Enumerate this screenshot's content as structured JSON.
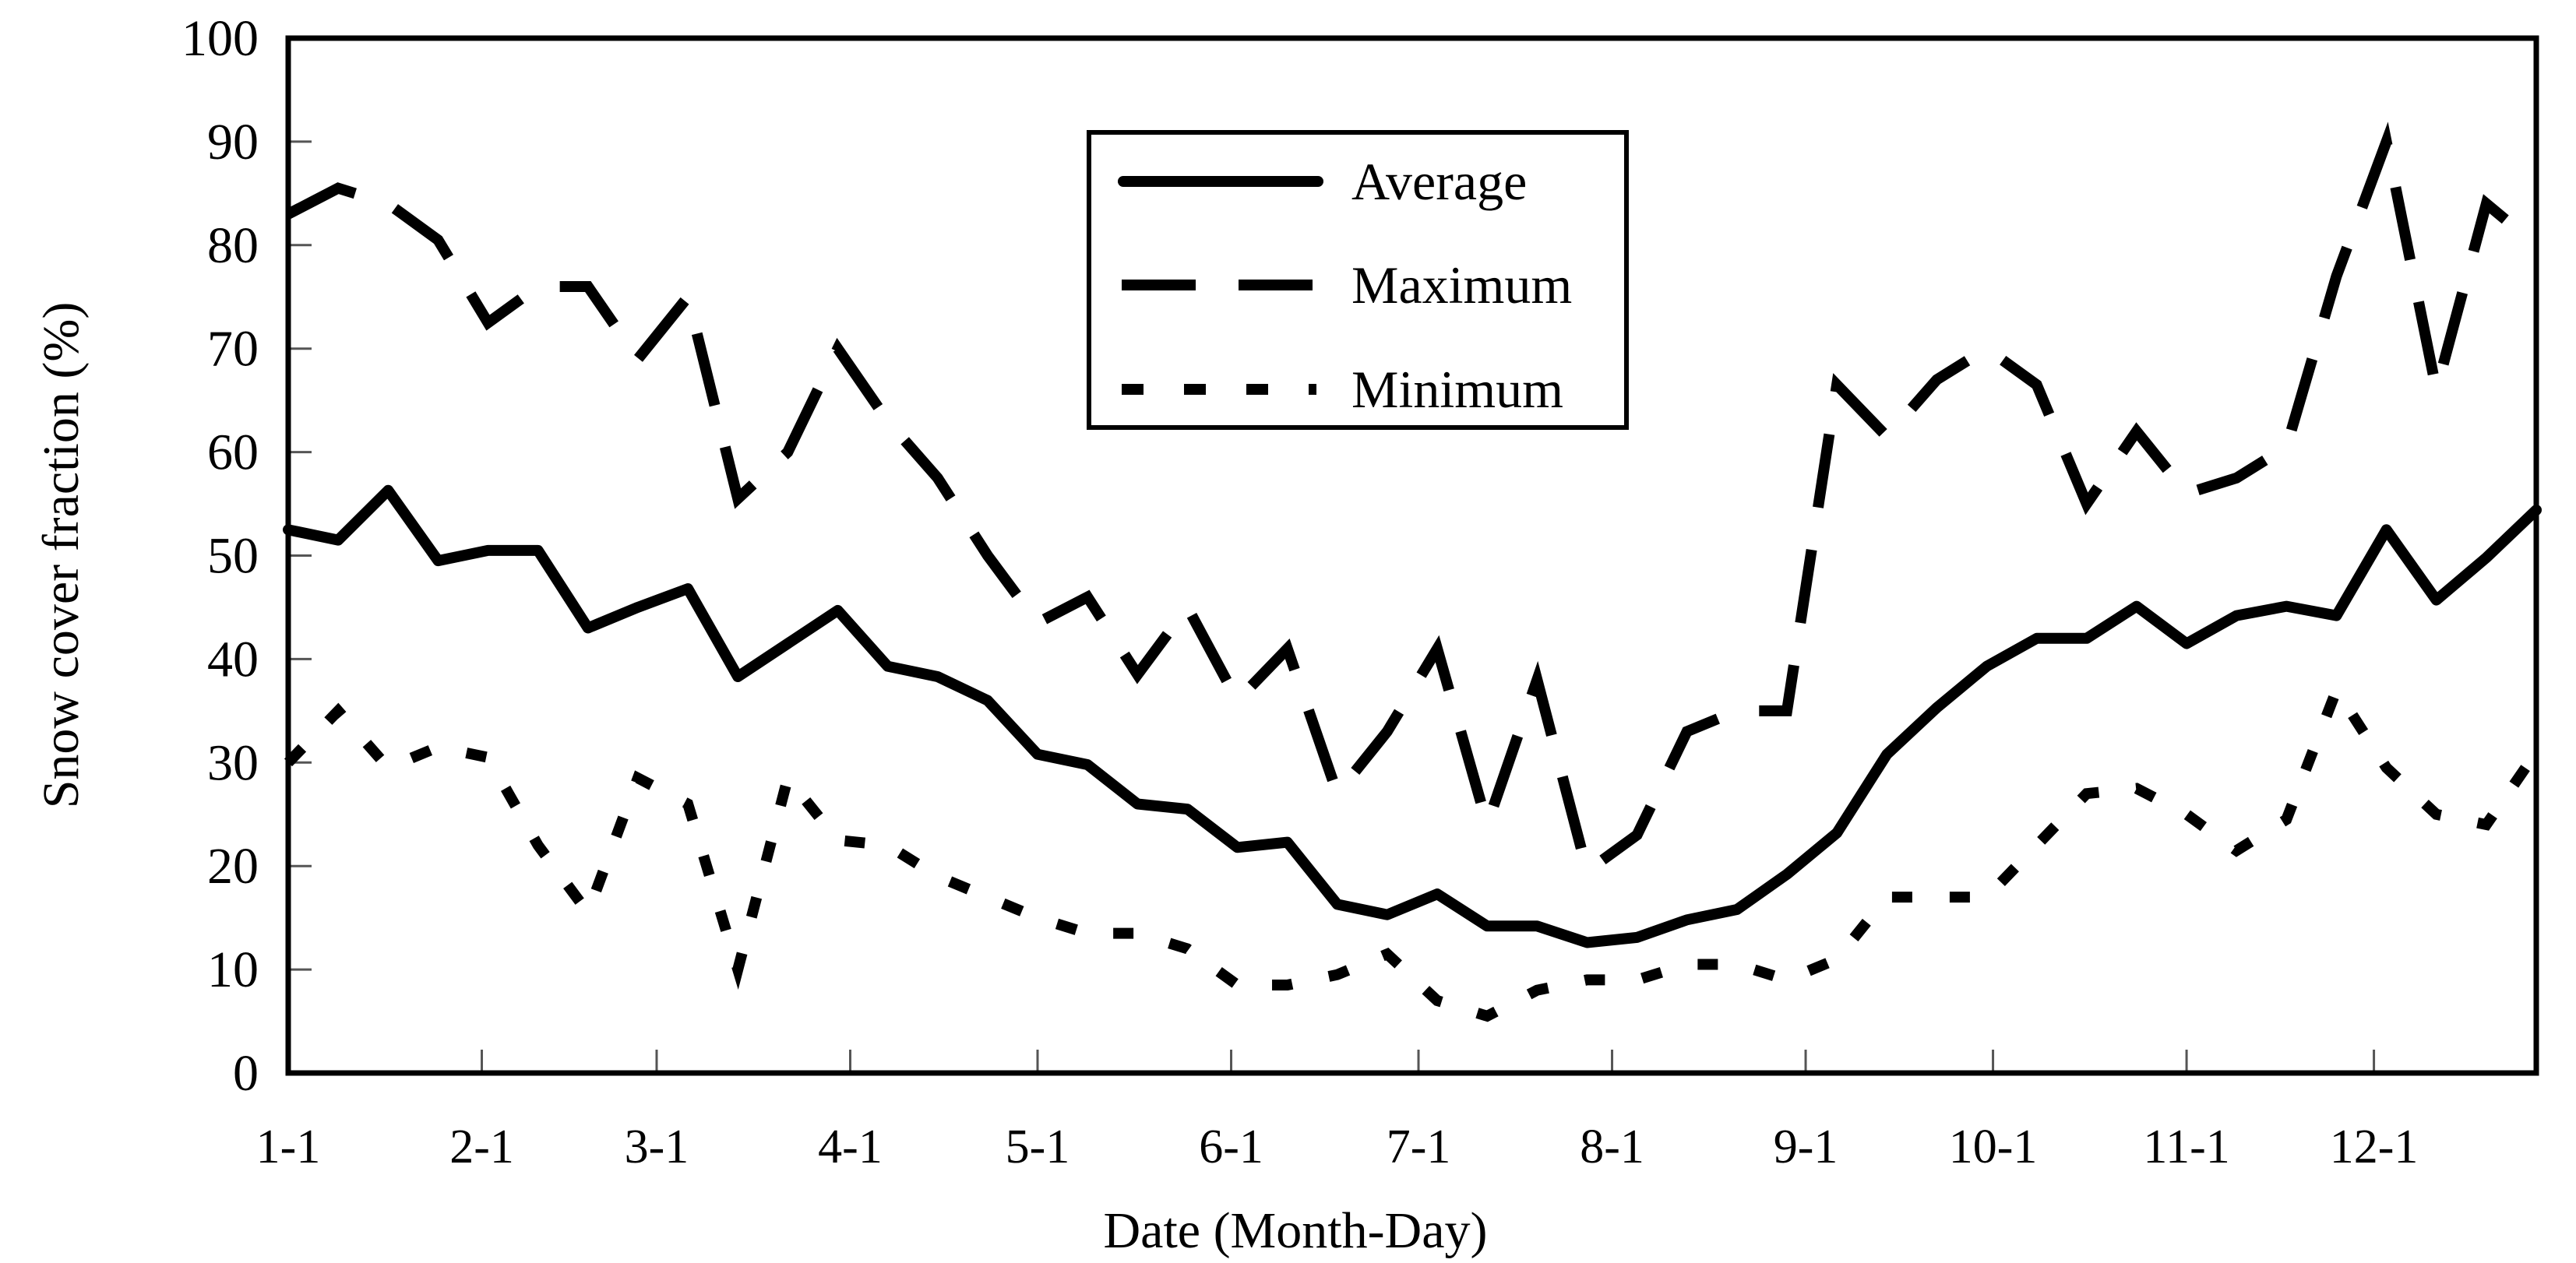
{
  "chart_data": {
    "type": "line",
    "title": "",
    "xlabel": "Date (Month-Day)",
    "ylabel": "Snow cover fraction (%)",
    "ylim": [
      0,
      100
    ],
    "xlim_days": [
      0,
      360
    ],
    "y_ticks": [
      "0",
      "10",
      "20",
      "30",
      "40",
      "50",
      "60",
      "70",
      "80",
      "90",
      "100"
    ],
    "y_tick_values": [
      0,
      10,
      20,
      30,
      40,
      50,
      60,
      70,
      80,
      90,
      100
    ],
    "x_ticks": [
      "1-1",
      "2-1",
      "3-1",
      "4-1",
      "5-1",
      "6-1",
      "7-1",
      "8-1",
      "9-1",
      "10-1",
      "11-1",
      "12-1"
    ],
    "x_tick_days": [
      0,
      31,
      59,
      90,
      120,
      151,
      181,
      212,
      243,
      273,
      304,
      334
    ],
    "x_step_days": 8,
    "grid": false,
    "legend_position": "top-center",
    "series": [
      {
        "name": "Average",
        "style": "solid",
        "color": "#000000",
        "values": [
          52.5,
          51.5,
          56.3,
          49.5,
          50.5,
          50.5,
          43.0,
          45.0,
          46.8,
          38.3,
          41.5,
          44.7,
          39.3,
          38.3,
          36.0,
          30.8,
          29.8,
          26.0,
          25.5,
          21.8,
          22.3,
          16.3,
          15.3,
          17.3,
          14.2,
          14.2,
          12.6,
          13.1,
          14.8,
          15.8,
          19.2,
          23.2,
          30.8,
          35.3,
          39.3,
          42.0,
          42.0,
          45.1,
          41.5,
          44.2,
          45.1,
          44.2,
          52.5,
          45.7,
          49.8,
          54.4
        ]
      },
      {
        "name": "Maximum",
        "style": "dashed",
        "color": "#000000",
        "values": [
          83.0,
          85.5,
          84.0,
          80.5,
          72.5,
          76.0,
          76.0,
          69.0,
          75.0,
          55.5,
          60.0,
          70.0,
          63.0,
          57.5,
          50.0,
          43.5,
          46.0,
          38.5,
          45.0,
          36.0,
          41.0,
          27.0,
          33.0,
          41.0,
          24.0,
          38.0,
          19.5,
          23.0,
          33.0,
          35.0,
          35.0,
          66.5,
          61.5,
          67.0,
          70.0,
          66.5,
          55.0,
          62.0,
          56.0,
          57.5,
          60.5,
          77.0,
          90.0,
          66.0,
          84.0,
          80.0
        ]
      },
      {
        "name": "Minimum",
        "style": "dotted",
        "color": "#000000",
        "values": [
          30.0,
          35.0,
          29.5,
          31.5,
          30.5,
          22.0,
          15.5,
          28.5,
          26.0,
          10.0,
          28.5,
          22.5,
          22.0,
          19.0,
          17.0,
          15.0,
          13.5,
          13.5,
          12.0,
          8.5,
          8.5,
          9.5,
          11.5,
          7.0,
          5.5,
          8.0,
          9.0,
          9.0,
          10.5,
          10.5,
          9.0,
          11.0,
          17.0,
          17.0,
          17.0,
          22.0,
          27.0,
          27.5,
          25.0,
          21.5,
          24.5,
          37.0,
          29.5,
          25.0,
          24.0,
          31.0
        ]
      }
    ]
  }
}
